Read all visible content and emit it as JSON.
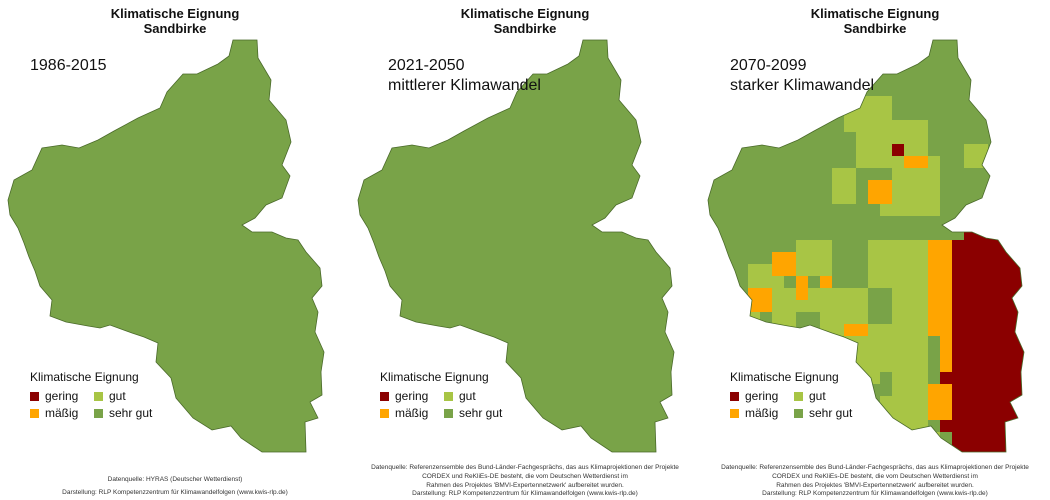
{
  "colors": {
    "gering": "#8b0000",
    "massig": "#ffa500",
    "gut": "#a8c545",
    "sehr_gut": "#79a348",
    "border": "#4a6a2a"
  },
  "legend": {
    "title": "Klimatische Eignung",
    "items": [
      {
        "key": "gering",
        "label": "gering"
      },
      {
        "key": "massig",
        "label": "mäßig"
      },
      {
        "key": "gut",
        "label": "gut"
      },
      {
        "key": "sehr_gut",
        "label": "sehr gut"
      }
    ]
  },
  "panels": [
    {
      "title_line1": "Klimatische Eignung",
      "title_line2": "Sandbirke",
      "period_line1": "1986-2015",
      "period_line2": "",
      "source_line1": "Datenquelle: HYRAS (Deutscher Wetterdienst)",
      "source_line2": "",
      "source_line3": "",
      "credit": "Darstellung: RLP Kompetenzzentrum für Klimawandelfolgen (www.kwis-rlp.de)"
    },
    {
      "title_line1": "Klimatische Eignung",
      "title_line2": "Sandbirke",
      "period_line1": "2021-2050",
      "period_line2": "mittlerer Klimawandel",
      "source_line1": "Datenquelle: Referenzensemble des Bund-Länder-Fachgesprächs, das aus Klimaprojektionen der Projekte",
      "source_line2": "CORDEX und ReKliEs-DE besteht, die vom Deutschen Wetterdienst im",
      "source_line3": "Rahmen des Projektes 'BMVI-Expertennetzwerk' aufbereitet wurden.",
      "credit": "Darstellung: RLP Kompetenzzentrum für Klimawandelfolgen (www.kwis-rlp.de)"
    },
    {
      "title_line1": "Klimatische Eignung",
      "title_line2": "Sandbirke",
      "period_line1": "2070-2099",
      "period_line2": "starker Klimawandel",
      "source_line1": "Datenquelle: Referenzensemble des Bund-Länder-Fachgesprächs, das aus Klimaprojektionen der Projekte",
      "source_line2": "CORDEX und ReKliEs-DE besteht, die vom Deutschen Wetterdienst im",
      "source_line3": "Rahmen des Projektes 'BMVI-Expertennetzwerk' aufbereitet wurden.",
      "credit": "Darstellung: RLP Kompetenzzentrum für Klimawandelfolgen (www.kwis-rlp.de)"
    }
  ]
}
